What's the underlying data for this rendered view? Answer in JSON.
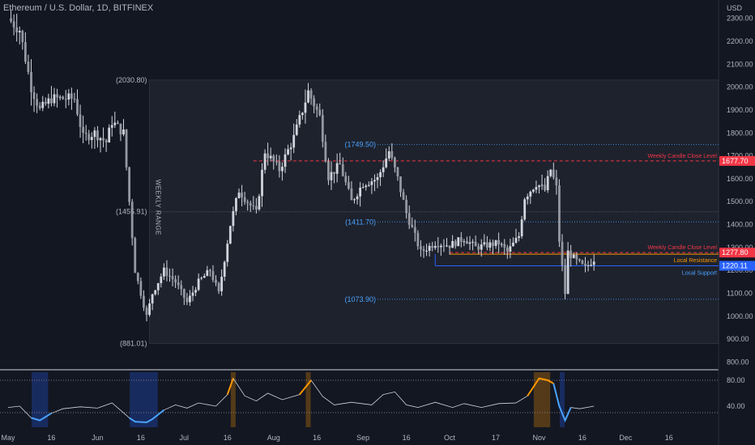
{
  "header": {
    "title": "Ethereum / U.S. Dollar, 1D, BITFINEX"
  },
  "price_axis": {
    "currency": "USD",
    "ticks": [
      "2300.00",
      "2200.00",
      "2100.00",
      "2000.00",
      "1900.00",
      "1800.00",
      "1700.00",
      "1600.00",
      "1500.00",
      "1400.00",
      "1300.00",
      "1200.00",
      "1100.00",
      "1000.00",
      "900.00",
      "800.00"
    ]
  },
  "colors": {
    "background": "#131722",
    "candle": "#d1d4dc",
    "range_box": "#1e222d",
    "resistance_red": "#f23645",
    "resistance_orange": "#ff9800",
    "support_blue": "#2962ff",
    "range_label_blue": "#4aa3ff",
    "osc_line": "#d1d4dc"
  },
  "weekly_range": {
    "label": "WEEKLY RANGE",
    "high_label": "(2030.80)",
    "high": 2030.8,
    "mid_label": "(1455.91)",
    "mid": 1455.91,
    "low_label": "(881.01)",
    "low": 881.01
  },
  "levels": [
    {
      "label": "(1749.50)",
      "value": 1749.5
    },
    {
      "label": "(1411.70)",
      "value": 1411.7
    },
    {
      "label": "(1073.90)",
      "value": 1073.9
    }
  ],
  "annotations": {
    "weekly_close_upper": {
      "text": "Weekly Candle Close Level",
      "value": 1677.7,
      "badge": "1677.70"
    },
    "weekly_close_lower": {
      "text": "Weekly Candle Close Level",
      "value": 1277.8,
      "badge": "1277.80"
    },
    "local_resistance": {
      "text": "Local Resistance",
      "value": 1277.8
    },
    "local_support": {
      "text": "Local Support",
      "value": 1220.11,
      "badge": "1220.11"
    }
  },
  "oscillator": {
    "ticks": [
      "80.00",
      "40.00"
    ],
    "overbought": 80,
    "oversold": 30
  },
  "time_axis": [
    "May",
    "16",
    "Jun",
    "16",
    "Jul",
    "16",
    "Aug",
    "16",
    "Sep",
    "16",
    "Oct",
    "17",
    "Nov",
    "16",
    "Dec",
    "16"
  ],
  "chart_data": {
    "type": "candlestick",
    "title": "Ethereum / U.S. Dollar, 1D, BITFINEX",
    "ylabel": "USD",
    "ylim": [
      770,
      2380
    ],
    "x_range": [
      "2022-05-01",
      "2022-12-27"
    ],
    "price_path": [
      [
        "2022-05-01",
        2300
      ],
      [
        "2022-05-05",
        2250
      ],
      [
        "2022-05-09",
        2000
      ],
      [
        "2022-05-12",
        1900
      ],
      [
        "2022-05-16",
        1950
      ],
      [
        "2022-05-20",
        1950
      ],
      [
        "2022-05-24",
        1950
      ],
      [
        "2022-05-27",
        1780
      ],
      [
        "2022-05-31",
        1800
      ],
      [
        "2022-06-04",
        1760
      ],
      [
        "2022-06-06",
        1850
      ],
      [
        "2022-06-10",
        1800
      ],
      [
        "2022-06-12",
        1500
      ],
      [
        "2022-06-14",
        1200
      ],
      [
        "2022-06-18",
        1000
      ],
      [
        "2022-06-20",
        1100
      ],
      [
        "2022-06-24",
        1200
      ],
      [
        "2022-06-28",
        1150
      ],
      [
        "2022-07-02",
        1060
      ],
      [
        "2022-07-06",
        1150
      ],
      [
        "2022-07-10",
        1200
      ],
      [
        "2022-07-13",
        1100
      ],
      [
        "2022-07-17",
        1400
      ],
      [
        "2022-07-20",
        1550
      ],
      [
        "2022-07-26",
        1450
      ],
      [
        "2022-07-29",
        1720
      ],
      [
        "2022-08-03",
        1640
      ],
      [
        "2022-08-08",
        1780
      ],
      [
        "2022-08-13",
        1980
      ],
      [
        "2022-08-17",
        1870
      ],
      [
        "2022-08-20",
        1610
      ],
      [
        "2022-08-24",
        1660
      ],
      [
        "2022-08-28",
        1500
      ],
      [
        "2022-09-01",
        1580
      ],
      [
        "2022-09-06",
        1600
      ],
      [
        "2022-09-10",
        1720
      ],
      [
        "2022-09-13",
        1600
      ],
      [
        "2022-09-16",
        1450
      ],
      [
        "2022-09-21",
        1280
      ],
      [
        "2022-09-26",
        1320
      ],
      [
        "2022-10-01",
        1310
      ],
      [
        "2022-10-06",
        1340
      ],
      [
        "2022-10-10",
        1300
      ],
      [
        "2022-10-14",
        1310
      ],
      [
        "2022-10-18",
        1320
      ],
      [
        "2022-10-21",
        1280
      ],
      [
        "2022-10-25",
        1350
      ],
      [
        "2022-10-27",
        1520
      ],
      [
        "2022-10-31",
        1580
      ],
      [
        "2022-11-03",
        1550
      ],
      [
        "2022-11-05",
        1640
      ],
      [
        "2022-11-07",
        1560
      ],
      [
        "2022-11-08",
        1330
      ],
      [
        "2022-11-10",
        1100
      ],
      [
        "2022-11-11",
        1280
      ],
      [
        "2022-11-14",
        1240
      ],
      [
        "2022-11-17",
        1210
      ],
      [
        "2022-11-20",
        1250
      ]
    ],
    "oscillator_path": [
      [
        "2022-05-01",
        38
      ],
      [
        "2022-05-05",
        40
      ],
      [
        "2022-05-09",
        22
      ],
      [
        "2022-05-12",
        18
      ],
      [
        "2022-05-16",
        29
      ],
      [
        "2022-05-20",
        36
      ],
      [
        "2022-05-26",
        39
      ],
      [
        "2022-06-01",
        37
      ],
      [
        "2022-06-06",
        45
      ],
      [
        "2022-06-12",
        22
      ],
      [
        "2022-06-14",
        16
      ],
      [
        "2022-06-18",
        15
      ],
      [
        "2022-06-20",
        20
      ],
      [
        "2022-06-24",
        34
      ],
      [
        "2022-06-28",
        42
      ],
      [
        "2022-07-02",
        37
      ],
      [
        "2022-07-06",
        45
      ],
      [
        "2022-07-12",
        40
      ],
      [
        "2022-07-16",
        58
      ],
      [
        "2022-07-18",
        83
      ],
      [
        "2022-07-22",
        56
      ],
      [
        "2022-07-26",
        48
      ],
      [
        "2022-07-30",
        60
      ],
      [
        "2022-08-04",
        50
      ],
      [
        "2022-08-10",
        58
      ],
      [
        "2022-08-14",
        80
      ],
      [
        "2022-08-18",
        55
      ],
      [
        "2022-08-22",
        42
      ],
      [
        "2022-08-28",
        46
      ],
      [
        "2022-09-04",
        42
      ],
      [
        "2022-09-08",
        58
      ],
      [
        "2022-09-12",
        62
      ],
      [
        "2022-09-16",
        42
      ],
      [
        "2022-09-20",
        38
      ],
      [
        "2022-09-26",
        46
      ],
      [
        "2022-10-02",
        38
      ],
      [
        "2022-10-06",
        44
      ],
      [
        "2022-10-12",
        38
      ],
      [
        "2022-10-18",
        44
      ],
      [
        "2022-10-24",
        45
      ],
      [
        "2022-10-28",
        56
      ],
      [
        "2022-11-01",
        83
      ],
      [
        "2022-11-04",
        80
      ],
      [
        "2022-11-06",
        75
      ],
      [
        "2022-11-08",
        40
      ],
      [
        "2022-11-10",
        18
      ],
      [
        "2022-11-12",
        38
      ],
      [
        "2022-11-15",
        36
      ],
      [
        "2022-11-20",
        40
      ]
    ],
    "highlight_zones": [
      {
        "start": "2022-05-10",
        "end": "2022-05-14",
        "kind": "oversold"
      },
      {
        "start": "2022-06-13",
        "end": "2022-06-21",
        "kind": "oversold"
      },
      {
        "start": "2022-07-18",
        "end": "2022-07-18",
        "kind": "overbought"
      },
      {
        "start": "2022-08-13",
        "end": "2022-08-13",
        "kind": "overbought"
      },
      {
        "start": "2022-10-31",
        "end": "2022-11-04",
        "kind": "overbought"
      },
      {
        "start": "2022-11-09",
        "end": "2022-11-09",
        "kind": "oversold"
      }
    ],
    "grid": false,
    "legend": "none"
  }
}
